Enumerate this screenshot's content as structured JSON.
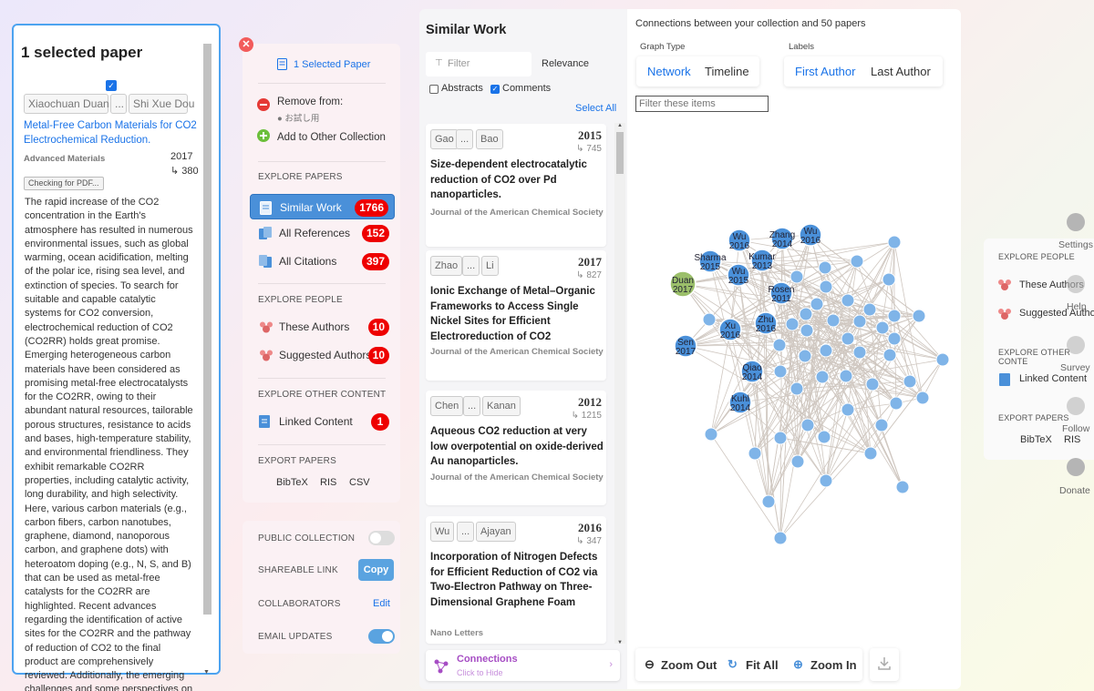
{
  "selection": {
    "title": "1 selected paper",
    "author_first": "Xiaochuan Duan",
    "author_ellipsis": "...",
    "author_last": "Shi Xue Dou",
    "paper_title": "Metal-Free Carbon Materials for CO2 Electrochemical Reduction.",
    "journal": "Advanced Materials",
    "year": "2017",
    "citations": "↳ 380",
    "pdf_button": "Checking for PDF...",
    "abstract": "The rapid increase of the CO2 concentration in the Earth's atmosphere has resulted in numerous environmental issues, such as global warming, ocean acidification, melting of the polar ice, rising sea level, and extinction of species. To search for suitable and capable catalytic systems for CO2 conversion, electrochemical reduction of CO2 (CO2RR) holds great promise. Emerging heterogeneous carbon materials have been considered as promising metal-free electrocatalysts for the CO2RR, owing to their abundant natural resources, tailorable porous structures, resistance to acids and bases, high-temperature stability, and environmental friendliness. They exhibit remarkable CO2RR properties, including catalytic activity, long durability, and high selectivity. Here, various carbon materials (e.g., carbon fibers, carbon nanotubes, graphene, diamond, nanoporous carbon, and graphene dots) with heteroatom doping (e.g., N, S, and B) that can be used as metal-free catalysts for the CO2RR are highlighted. Recent advances regarding the identification of active sites for the CO2RR and the pathway of reduction of CO2 to the final product are comprehensively reviewed. Additionally, the emerging challenges and some perspectives on"
  },
  "nav": {
    "selected_label": "1 Selected Paper",
    "remove_from": "Remove from:",
    "remove_target": "● お試し用",
    "add_other": "Add to Other Collection",
    "explore_papers": "EXPLORE PAPERS",
    "similar_work": "Similar Work",
    "similar_count": "1766",
    "all_references": "All References",
    "references_count": "152",
    "all_citations": "All Citations",
    "citations_count": "397",
    "explore_people": "EXPLORE PEOPLE",
    "these_authors": "These Authors",
    "these_authors_count": "10",
    "suggested_authors": "Suggested Authors",
    "suggested_count": "10",
    "explore_other": "EXPLORE OTHER CONTENT",
    "linked_content": "Linked Content",
    "linked_count": "1",
    "export_papers": "EXPORT PAPERS",
    "bibtex": "BibTeX",
    "ris": "RIS",
    "csv": "CSV"
  },
  "collection": {
    "public": "PUBLIC COLLECTION",
    "public_on": false,
    "shareable": "SHAREABLE LINK",
    "copy": "Copy",
    "collaborators": "COLLABORATORS",
    "edit": "Edit",
    "email": "EMAIL UPDATES",
    "email_on": true
  },
  "similar": {
    "title": "Similar Work",
    "filter": "Filter",
    "sort": "Relevance",
    "abstracts": "Abstracts",
    "abstracts_checked": false,
    "comments": "Comments",
    "comments_checked": true,
    "select_all": "Select All",
    "papers": [
      {
        "first": "Gao",
        "last": "Bao",
        "year": "2015",
        "cites": "↳ 745",
        "title": "Size-dependent electrocatalytic reduction of CO2 over Pd nanoparticles.",
        "journal": "Journal of the American Chemical Society"
      },
      {
        "first": "Zhao",
        "last": "Li",
        "year": "2017",
        "cites": "↳ 827",
        "title": "Ionic Exchange of Metal–Organic Frameworks to Access Single Nickel Sites for Efficient Electroreduction of CO2",
        "journal": "Journal of the American Chemical Society"
      },
      {
        "first": "Chen",
        "last": "Kanan",
        "year": "2012",
        "cites": "↳ 1215",
        "title": "Aqueous CO2 reduction at very low overpotential on oxide-derived Au nanoparticles.",
        "journal": "Journal of the American Chemical Society"
      },
      {
        "first": "Wu",
        "last": "Ajayan",
        "year": "2016",
        "cites": "↳ 347",
        "title": "Incorporation of Nitrogen Defects for Efficient Reduction of CO2 via Two-Electron Pathway on Three-Dimensional Graphene Foam",
        "journal": "Nano Letters"
      }
    ],
    "connections": "Connections",
    "connections_sub": "Click to Hide"
  },
  "graph": {
    "header": "Connections between your collection and 50 papers",
    "graph_type_label": "Graph Type",
    "network": "Network",
    "timeline": "Timeline",
    "labels_label": "Labels",
    "first_author": "First Author",
    "last_author": "Last Author",
    "filter_placeholder": "Filter these items",
    "zoom_out": "Zoom Out",
    "fit_all": "Fit All",
    "zoom_in": "Zoom In",
    "accent": "#4a90d9",
    "selected_node_color": "#9bbf6a",
    "labeled_nodes": [
      {
        "name": "Duan",
        "year": "2017"
      },
      {
        "name": "Sharma",
        "year": "2015"
      },
      {
        "name": "Wu",
        "year": "2016"
      },
      {
        "name": "Zhang",
        "year": "2014"
      },
      {
        "name": "Wu",
        "year": "2016"
      },
      {
        "name": "Kumar",
        "year": "2013"
      },
      {
        "name": "Wu",
        "year": "2015"
      },
      {
        "name": "Rosen",
        "year": "2011"
      },
      {
        "name": "Zhu",
        "year": "2016"
      },
      {
        "name": "Xu",
        "year": "2016"
      },
      {
        "name": "Sen",
        "year": "2017"
      },
      {
        "name": "Qiao",
        "year": "2014"
      },
      {
        "name": "Kuhl",
        "year": "2014"
      }
    ]
  },
  "right": {
    "explore_people": "EXPLORE PEOPLE",
    "these_authors": "These Authors",
    "suggested_authors": "Suggested Autho",
    "explore_other": "EXPLORE OTHER CONTE",
    "linked_content": "Linked Content",
    "export_papers": "EXPORT PAPERS",
    "bibtex": "BibTeX",
    "ris": "RIS",
    "settings": "Settings",
    "help": "Help",
    "survey": "Survey",
    "follow": "Follow",
    "donate": "Donate"
  }
}
